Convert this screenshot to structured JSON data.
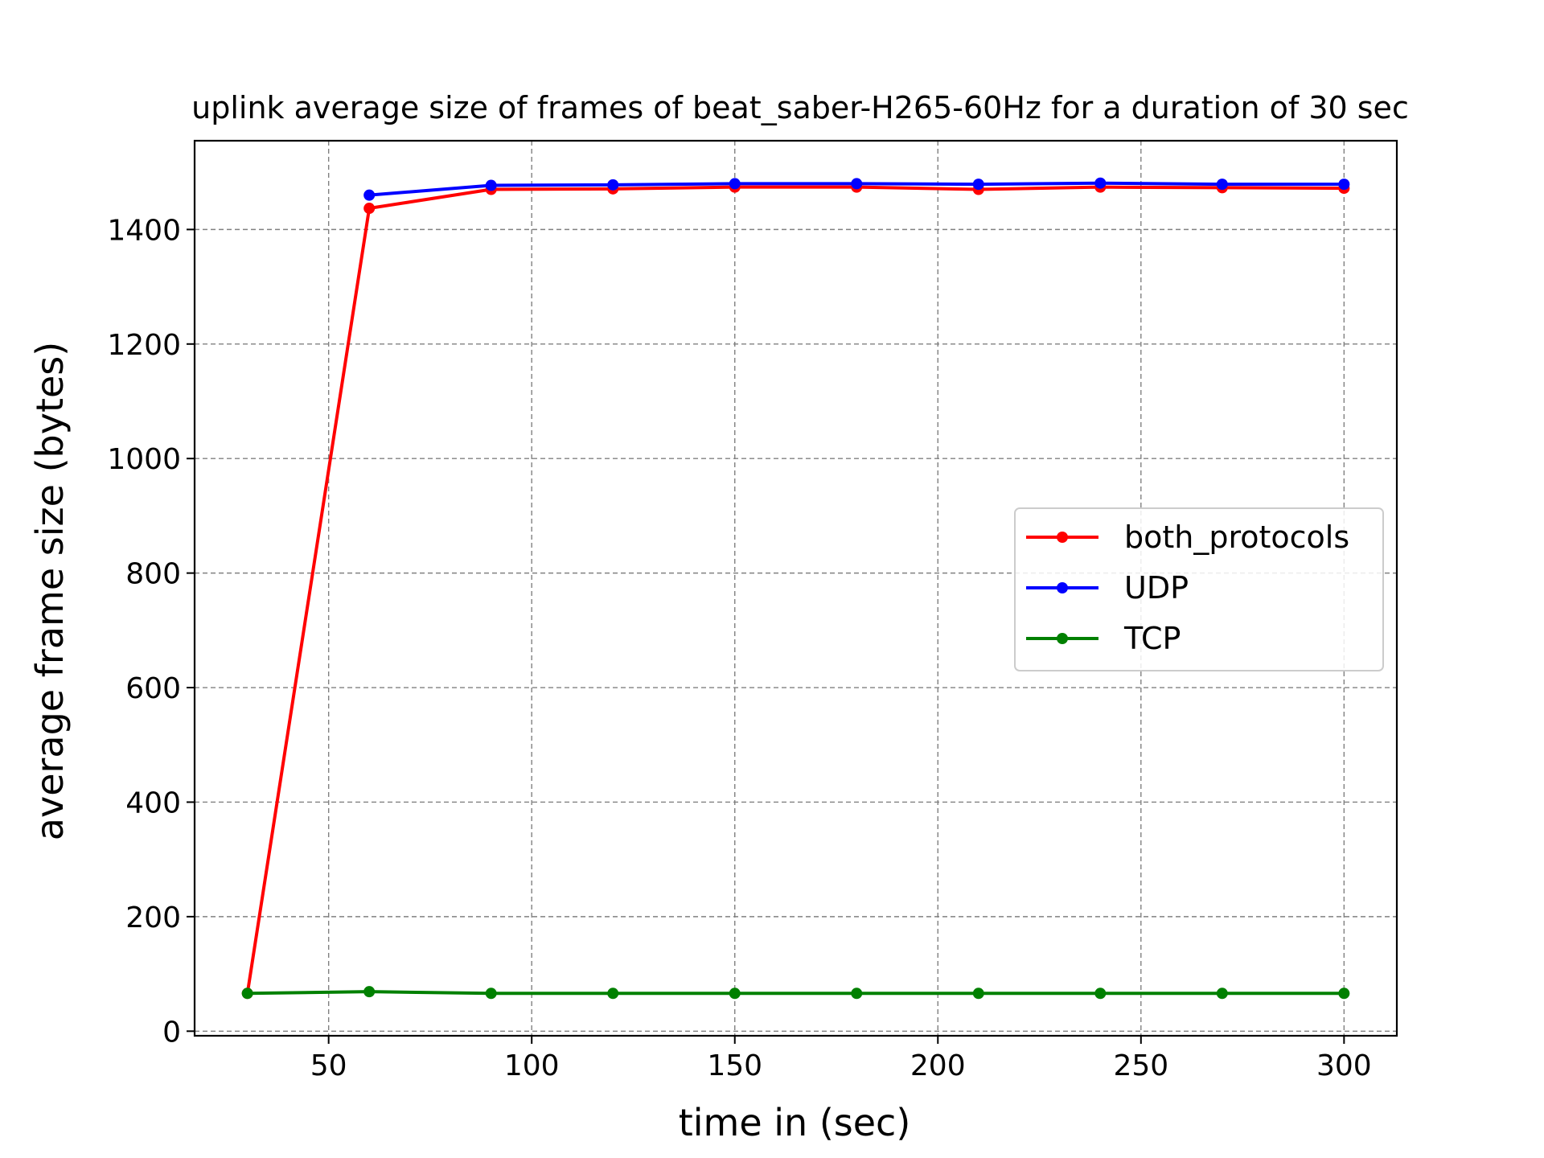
{
  "chart_data": {
    "type": "line",
    "title": "uplink average size of frames of beat_saber-H265-60Hz for a duration of 30 sec",
    "xlabel": "time in (sec)",
    "ylabel": "average frame size (bytes)",
    "xlim": [
      17,
      313
    ],
    "ylim": [
      -8,
      1555
    ],
    "xticks": [
      50,
      100,
      150,
      200,
      250,
      300
    ],
    "yticks": [
      0,
      200,
      400,
      600,
      800,
      1000,
      1200,
      1400
    ],
    "grid": true,
    "legend_position": "center-right",
    "series": [
      {
        "name": "both_protocols",
        "color": "#ff0000",
        "x": [
          30,
          60,
          90,
          120,
          150,
          180,
          210,
          240,
          270,
          300
        ],
        "y": [
          66,
          1437,
          1470,
          1471,
          1474,
          1474,
          1470,
          1474,
          1473,
          1472
        ]
      },
      {
        "name": "UDP",
        "color": "#0000ff",
        "x": [
          60,
          90,
          120,
          150,
          180,
          210,
          240,
          270,
          300
        ],
        "y": [
          1460,
          1477,
          1478,
          1480,
          1480,
          1479,
          1481,
          1479,
          1479
        ]
      },
      {
        "name": "TCP",
        "color": "#008000",
        "x": [
          30,
          60,
          90,
          120,
          150,
          180,
          210,
          240,
          270,
          300
        ],
        "y": [
          66,
          69,
          66,
          66,
          66,
          66,
          66,
          66,
          66,
          66
        ]
      }
    ]
  }
}
